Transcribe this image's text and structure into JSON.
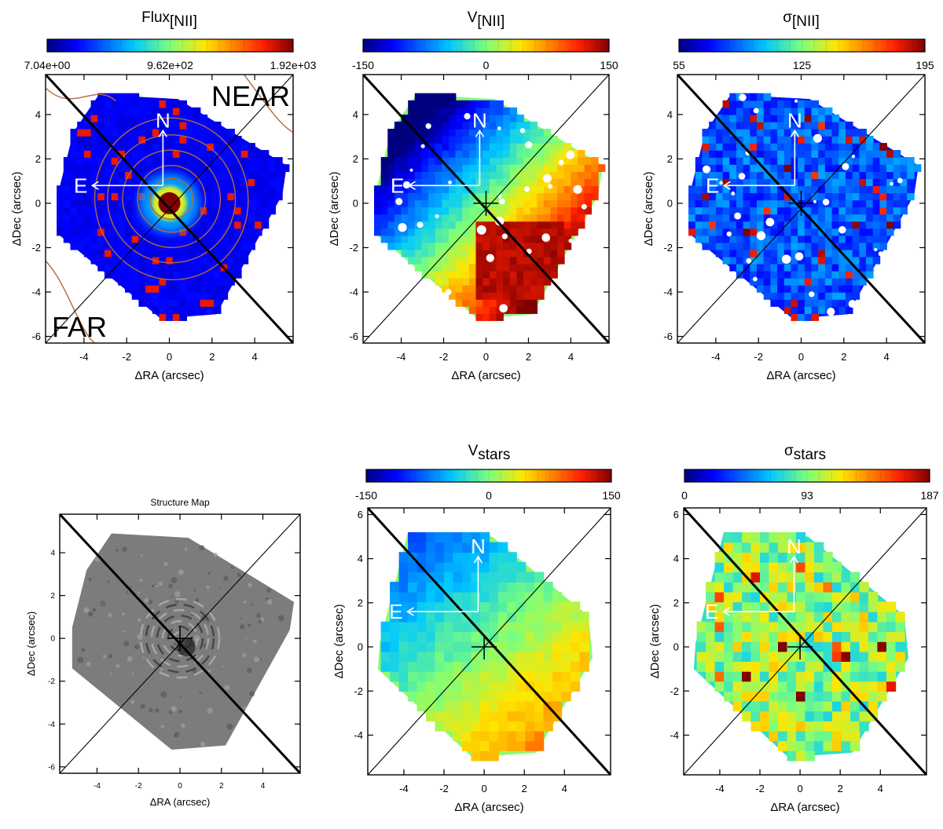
{
  "chart_data": [
    {
      "id": "flux_nii",
      "type": "heatmap",
      "title": "Flux",
      "title_sub": "[NII]",
      "xlabel": "ΔRA (arcsec)",
      "ylabel": "ΔDec (arcsec)",
      "xlim": [
        -5.8,
        5.8
      ],
      "ylim": [
        -6.3,
        5.8
      ],
      "xticks": [
        -4,
        -2,
        0,
        2,
        4
      ],
      "yticks": [
        -6,
        -4,
        -2,
        0,
        2,
        4
      ],
      "colormap": "jet",
      "colorbar": {
        "min_label": "7.04e+00",
        "mid_label": "9.62e+02",
        "max_label": "1.92e+03"
      },
      "annotations": [
        "NEAR",
        "FAR"
      ],
      "compass": {
        "n_label": "N",
        "e_label": "E"
      },
      "overlay": "contours"
    },
    {
      "id": "v_nii",
      "type": "heatmap",
      "title": "V",
      "title_sub": "[NII]",
      "xlabel": "ΔRA (arcsec)",
      "ylabel": "ΔDec (arcsec)",
      "xlim": [
        -5.8,
        5.8
      ],
      "ylim": [
        -6.3,
        5.8
      ],
      "xticks": [
        -4,
        -2,
        0,
        2,
        4
      ],
      "yticks": [
        -6,
        -4,
        -2,
        0,
        2,
        4
      ],
      "colormap": "jet",
      "colorbar": {
        "min_label": "-150",
        "mid_label": "0",
        "max_label": "150"
      },
      "compass": {
        "n_label": "N",
        "e_label": "E"
      }
    },
    {
      "id": "sigma_nii",
      "type": "heatmap",
      "title": "σ",
      "title_sub": "[NII]",
      "xlabel": "ΔRA (arcsec)",
      "ylabel": "ΔDec (arcsec)",
      "xlim": [
        -5.8,
        5.8
      ],
      "ylim": [
        -6.3,
        5.8
      ],
      "xticks": [
        -4,
        -2,
        0,
        2,
        4
      ],
      "yticks": [
        -6,
        -4,
        -2,
        0,
        2,
        4
      ],
      "colormap": "jet",
      "colorbar": {
        "min_label": "55",
        "mid_label": "125",
        "max_label": "195"
      },
      "compass": {
        "n_label": "N",
        "e_label": "E"
      }
    },
    {
      "id": "structure_map",
      "type": "heatmap",
      "title": "Structure Map",
      "xlabel": "ΔRA (arcsec)",
      "ylabel": "ΔDec (arcsec)",
      "xlim": [
        -5.8,
        5.8
      ],
      "ylim": [
        -6.3,
        5.8
      ],
      "xticks": [
        -4,
        -2,
        0,
        2,
        4
      ],
      "yticks": [
        -6,
        -4,
        -2,
        0,
        2,
        4
      ],
      "colormap": "gray"
    },
    {
      "id": "v_stars",
      "type": "heatmap",
      "title": "V",
      "title_sub": "stars",
      "xlabel": "ΔRA (arcsec)",
      "ylabel": "ΔDec (arcsec)",
      "xlim": [
        -5.8,
        6.3
      ],
      "ylim": [
        -5.8,
        6.3
      ],
      "xticks": [
        -4,
        -2,
        0,
        2,
        4
      ],
      "yticks": [
        -4,
        -2,
        0,
        2,
        4,
        6
      ],
      "colormap": "jet",
      "colorbar": {
        "min_label": "-150",
        "mid_label": "0",
        "max_label": "150"
      },
      "compass": {
        "n_label": "N",
        "e_label": "E"
      }
    },
    {
      "id": "sigma_stars",
      "type": "heatmap",
      "title": "σ",
      "title_sub": "stars",
      "xlabel": "ΔRA (arcsec)",
      "ylabel": "ΔDec (arcsec)",
      "xlim": [
        -5.8,
        6.3
      ],
      "ylim": [
        -5.8,
        6.3
      ],
      "xticks": [
        -4,
        -2,
        0,
        2,
        4
      ],
      "yticks": [
        -4,
        -2,
        0,
        2,
        4,
        6
      ],
      "colormap": "jet",
      "colorbar": {
        "min_label": "0",
        "mid_label": "93",
        "max_label": "187"
      },
      "compass": {
        "n_label": "N",
        "e_label": "E"
      }
    }
  ]
}
